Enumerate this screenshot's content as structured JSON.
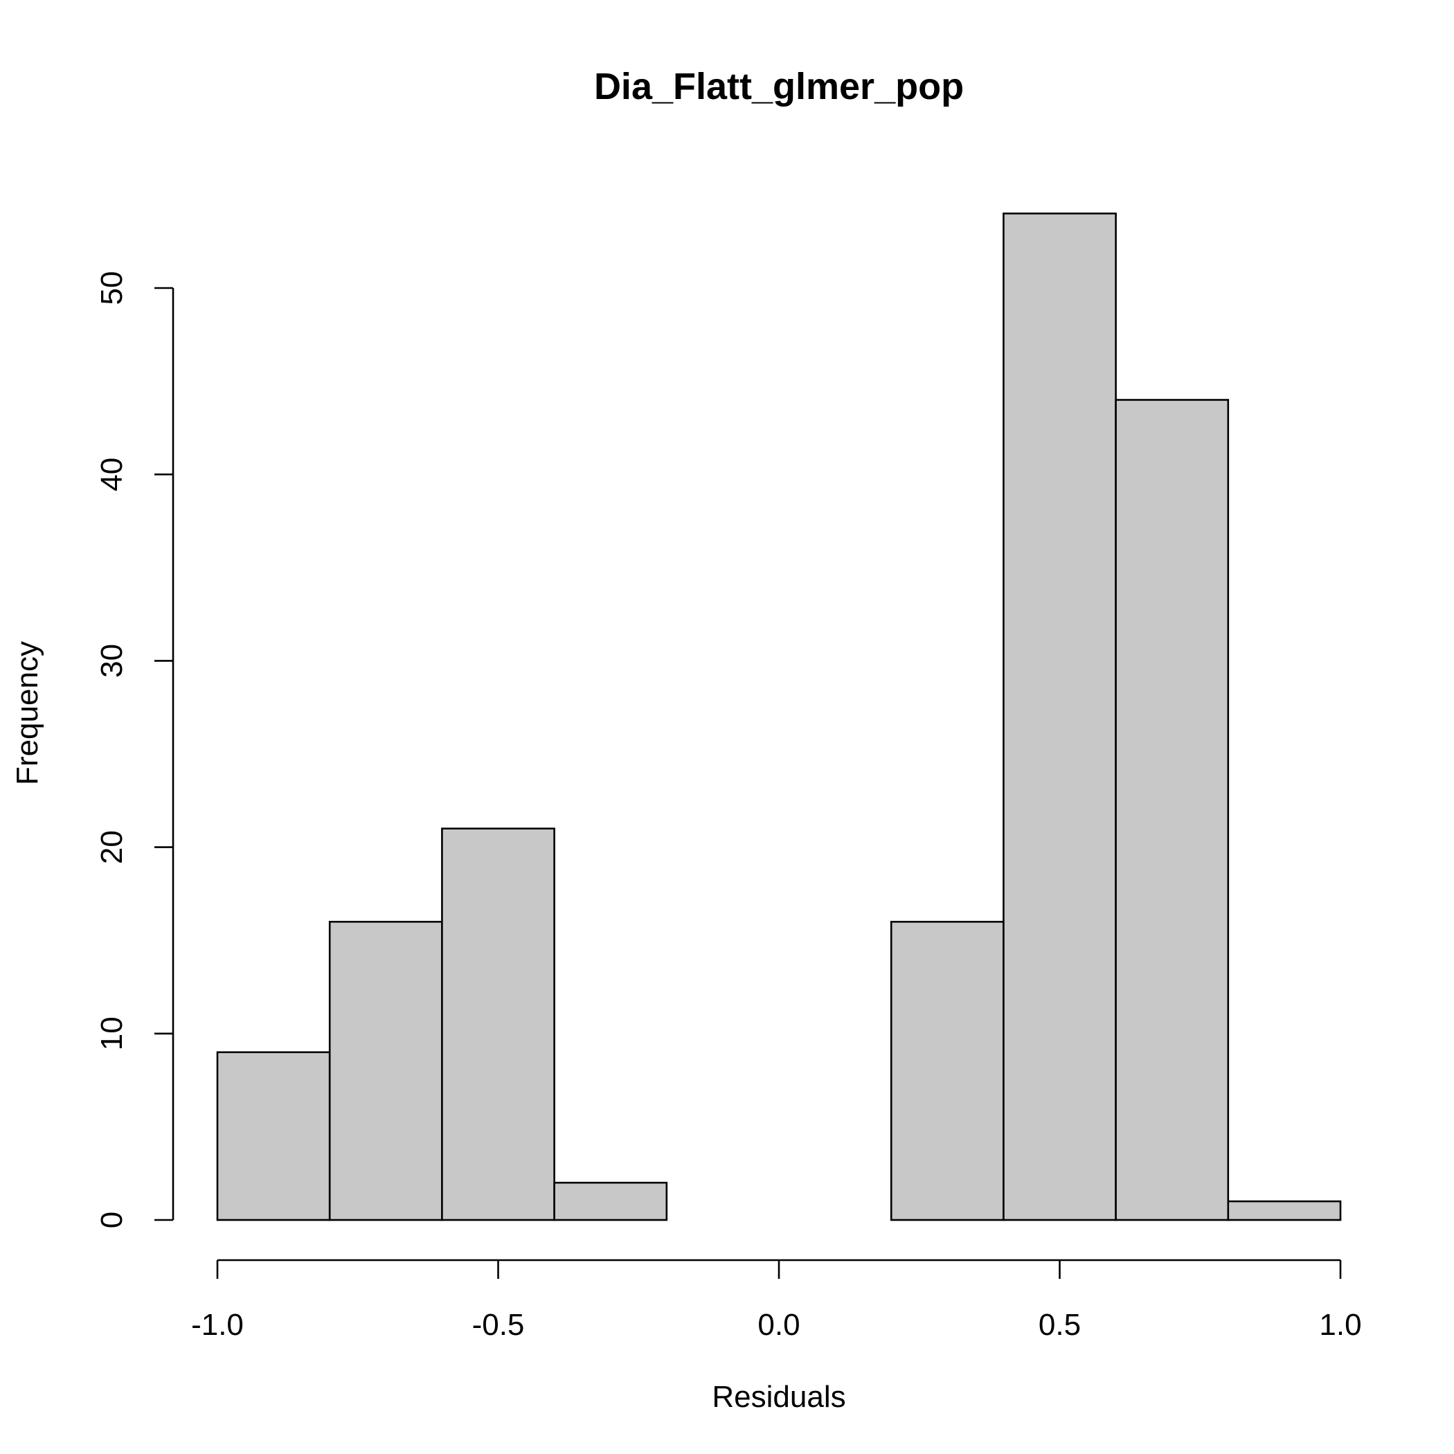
{
  "chart_data": {
    "type": "bar",
    "title": "Dia_Flatt_glmer_pop",
    "xlabel": "Residuals",
    "ylabel": "Frequency",
    "bin_edges": [
      -1.0,
      -0.8,
      -0.6,
      -0.4,
      -0.2,
      0.0,
      0.2,
      0.4,
      0.6,
      0.8,
      1.0
    ],
    "values": [
      9,
      16,
      21,
      2,
      0,
      0,
      16,
      54,
      44,
      1
    ],
    "xlim": [
      -1.0,
      1.0
    ],
    "ylim": [
      0,
      54
    ],
    "x_ticks": [
      -1.0,
      -0.5,
      0.0,
      0.5,
      1.0
    ],
    "x_tick_labels": [
      "-1.0",
      "-0.5",
      "0.0",
      "0.5",
      "1.0"
    ],
    "y_ticks": [
      0,
      10,
      20,
      30,
      40,
      50
    ],
    "y_tick_labels": [
      "0",
      "10",
      "20",
      "30",
      "40",
      "50"
    ],
    "bar_fill": "#c8c8c8",
    "grid": false,
    "legend": "none"
  }
}
